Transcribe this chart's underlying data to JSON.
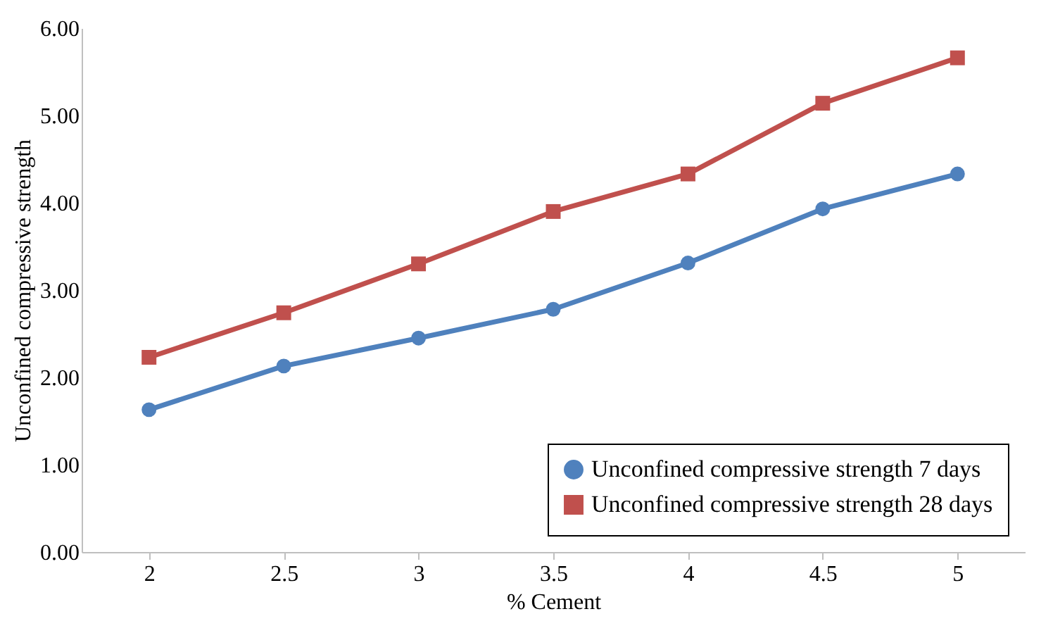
{
  "chart_data": {
    "type": "line",
    "xlabel": "% Cement",
    "ylabel": "Unconfined compressive strength",
    "categories": [
      "2",
      "2.5",
      "3",
      "3.5",
      "4",
      "4.5",
      "5"
    ],
    "series": [
      {
        "name": "Unconfined compressive strength 7 days",
        "color": "#4f81bd",
        "marker": "circle",
        "values": [
          1.63,
          2.13,
          2.45,
          2.78,
          3.31,
          3.93,
          4.33
        ]
      },
      {
        "name": "Unconfined compressive strength 28 days",
        "color": "#c0504d",
        "marker": "square",
        "values": [
          2.23,
          2.74,
          3.3,
          3.9,
          4.33,
          5.14,
          5.66
        ]
      }
    ],
    "ylim": [
      0,
      6
    ],
    "yticks": [
      {
        "value": 0,
        "label": "0.00"
      },
      {
        "value": 1,
        "label": "1.00"
      },
      {
        "value": 2,
        "label": "2.00"
      },
      {
        "value": 3,
        "label": "3.00"
      },
      {
        "value": 4,
        "label": "4.00"
      },
      {
        "value": 5,
        "label": "5.00"
      },
      {
        "value": 6,
        "label": "6.00"
      }
    ],
    "grid": false,
    "legend": "bottom right",
    "line_style": "solid"
  }
}
